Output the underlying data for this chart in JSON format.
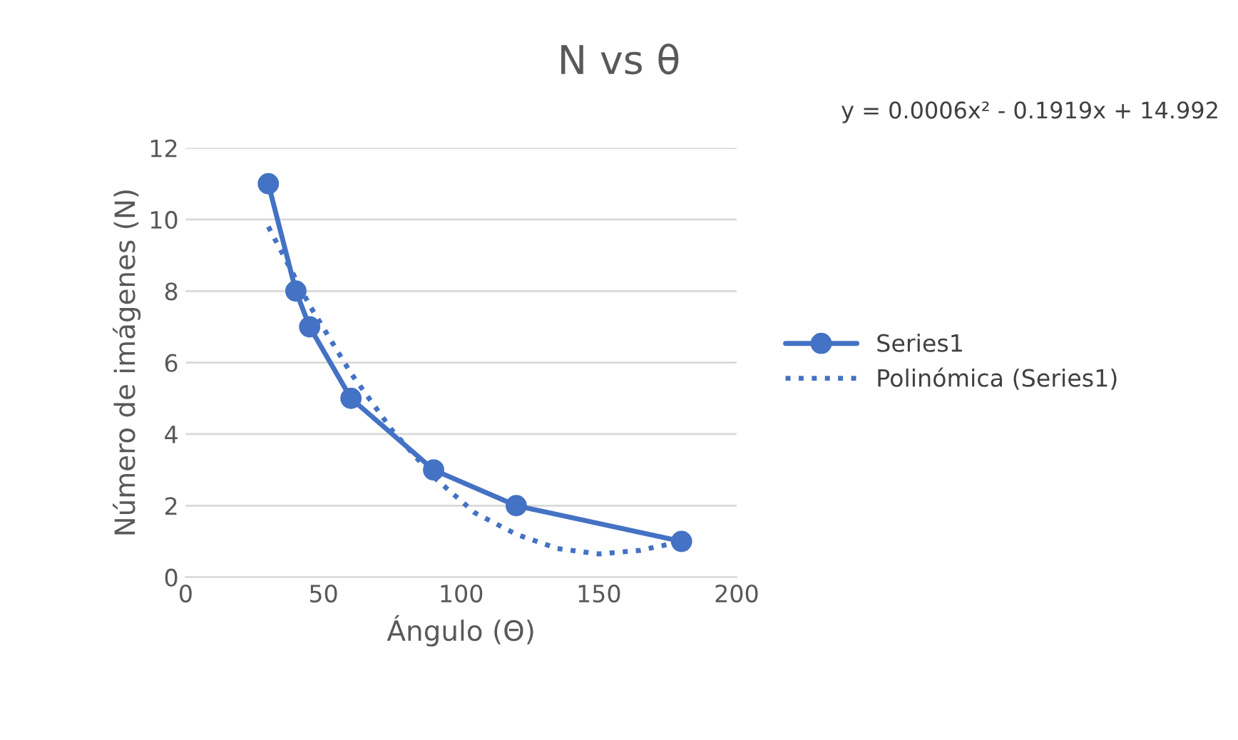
{
  "chart_data": {
    "type": "line",
    "title": "N vs θ",
    "xlabel": "Ángulo (Θ)",
    "ylabel": "Número de imágenes (N)",
    "annotations": [
      "y = 0.0006x² - 0.1919x + 14.992"
    ],
    "series": [
      {
        "name": "Series1",
        "color": "#4472c4",
        "x": [
          30,
          40,
          45,
          60,
          90,
          120,
          180
        ],
        "values": [
          11,
          8,
          7,
          5,
          3,
          2,
          1
        ],
        "marker": "circle",
        "line_style": "solid"
      },
      {
        "name": "Polinómica (Series1)",
        "color": "#4472c4",
        "x": [
          30,
          45,
          60,
          75,
          90,
          105,
          120,
          135,
          150,
          165,
          180
        ],
        "values": [
          9.8,
          7.6,
          5.7,
          4.1,
          2.8,
          1.8,
          1.2,
          0.8,
          0.65,
          0.75,
          1.0
        ],
        "marker": "none",
        "line_style": "dotted"
      }
    ],
    "xlim": [
      0,
      200
    ],
    "xticks": [
      0,
      50,
      100,
      150,
      200
    ],
    "ylim": [
      0,
      12
    ],
    "yticks": [
      0,
      2,
      4,
      6,
      8,
      10,
      12
    ],
    "grid": "y",
    "legend": "right"
  }
}
